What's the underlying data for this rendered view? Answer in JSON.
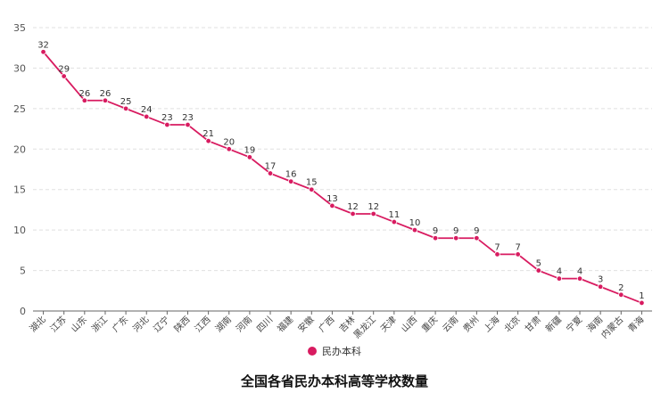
{
  "chart_data": {
    "type": "line",
    "title": "全国各省民办本科高等学校数量",
    "categories": [
      "湖北",
      "江苏",
      "山东",
      "浙江",
      "广东",
      "河北",
      "辽宁",
      "陕西",
      "江西",
      "湖南",
      "河南",
      "四川",
      "福建",
      "安徽",
      "广西",
      "吉林",
      "黑龙江",
      "天津",
      "山西",
      "重庆",
      "云南",
      "贵州",
      "上海",
      "北京",
      "甘肃",
      "新疆",
      "宁夏",
      "海南",
      "内蒙古",
      "青海"
    ],
    "series": [
      {
        "name": "民办本科",
        "values": [
          32,
          29,
          26,
          26,
          25,
          24,
          23,
          23,
          21,
          20,
          19,
          17,
          16,
          15,
          13,
          12,
          12,
          11,
          10,
          9,
          9,
          9,
          7,
          7,
          5,
          4,
          4,
          3,
          2,
          1
        ]
      }
    ],
    "ylim": [
      0,
      35
    ],
    "yticks": [
      0,
      5,
      10,
      15,
      20,
      25,
      30,
      35
    ],
    "grid": true,
    "legend_position": "bottom",
    "color": "#d81b60"
  }
}
